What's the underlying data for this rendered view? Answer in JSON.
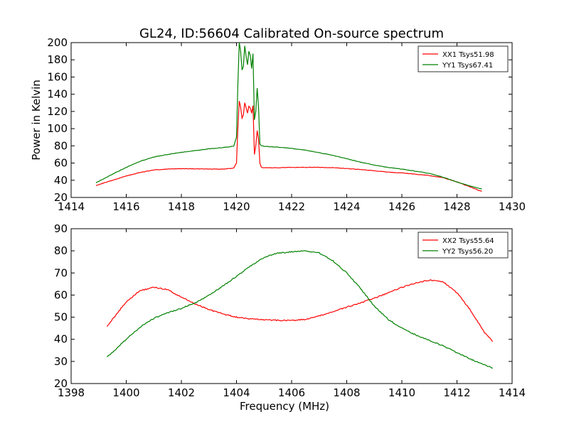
{
  "title": "GL24, ID:56604 Calibrated On-source spectrum",
  "colors": {
    "xx": "#ff0000",
    "yy": "#008000",
    "axes": "#000000",
    "background": "#ffffff"
  },
  "chart_data": [
    {
      "type": "line",
      "title": "GL24, ID:56604 Calibrated On-source spectrum",
      "xlabel": "",
      "ylabel": "Power in Kelvin",
      "xlim": [
        1414,
        1430
      ],
      "ylim": [
        20,
        200
      ],
      "xticks": [
        "1414",
        "1416",
        "1418",
        "1420",
        "1422",
        "1424",
        "1426",
        "1428",
        "1430"
      ],
      "yticks": [
        "20",
        "40",
        "60",
        "80",
        "100",
        "120",
        "140",
        "160",
        "180",
        "200"
      ],
      "grid": false,
      "legend_position": "top-right",
      "series": [
        {
          "name": "XX1 Tsys51.98",
          "color": "#ff0000",
          "x": [
            1414.9,
            1415.2,
            1415.5,
            1416.0,
            1416.5,
            1417.0,
            1417.5,
            1418.0,
            1418.5,
            1419.0,
            1419.5,
            1419.9,
            1420.0,
            1420.05,
            1420.1,
            1420.15,
            1420.2,
            1420.25,
            1420.3,
            1420.35,
            1420.4,
            1420.45,
            1420.5,
            1420.55,
            1420.6,
            1420.65,
            1420.7,
            1420.75,
            1420.8,
            1420.85,
            1420.9,
            1421.0,
            1421.5,
            1422.0,
            1422.5,
            1423.0,
            1423.5,
            1424.0,
            1424.5,
            1425.0,
            1425.5,
            1426.0,
            1426.5,
            1427.0,
            1427.5,
            1428.0,
            1428.5,
            1428.9
          ],
          "values": [
            34,
            37,
            40,
            45,
            49,
            52,
            53,
            53.5,
            53.3,
            53,
            53,
            54,
            60,
            100,
            132,
            125,
            112,
            116,
            130,
            124,
            118,
            126,
            124,
            118,
            127,
            70,
            80,
            98,
            88,
            60,
            55,
            54.5,
            54.5,
            55,
            55,
            55,
            54.5,
            53.5,
            52.5,
            51,
            49.5,
            48.5,
            47,
            45.5,
            43,
            38,
            32,
            27
          ]
        },
        {
          "name": "YY1 Tsys67.41",
          "color": "#008000",
          "x": [
            1414.9,
            1415.2,
            1415.5,
            1416.0,
            1416.5,
            1417.0,
            1417.5,
            1418.0,
            1418.5,
            1419.0,
            1419.5,
            1419.9,
            1420.0,
            1420.05,
            1420.1,
            1420.15,
            1420.2,
            1420.25,
            1420.3,
            1420.35,
            1420.4,
            1420.45,
            1420.5,
            1420.55,
            1420.6,
            1420.65,
            1420.7,
            1420.75,
            1420.8,
            1420.85,
            1420.9,
            1421.0,
            1421.5,
            1422.0,
            1422.5,
            1423.0,
            1423.5,
            1424.0,
            1424.5,
            1425.0,
            1425.5,
            1426.0,
            1426.5,
            1427.0,
            1427.5,
            1428.0,
            1428.5,
            1428.9
          ],
          "values": [
            37,
            42,
            47,
            55,
            62,
            67,
            70,
            72.5,
            74.5,
            76.5,
            78,
            79.5,
            90,
            150,
            200,
            190,
            168,
            172,
            196,
            184,
            174,
            190,
            185,
            170,
            187,
            110,
            120,
            147,
            125,
            82,
            80,
            79.5,
            78.5,
            77,
            75,
            72,
            69,
            65,
            61,
            57.5,
            55,
            53,
            50.5,
            48,
            43.5,
            38,
            33,
            30
          ]
        }
      ]
    },
    {
      "type": "line",
      "title": "",
      "xlabel": "Frequency (MHz)",
      "ylabel": "",
      "xlim": [
        1398,
        1414
      ],
      "ylim": [
        20,
        90
      ],
      "xticks": [
        "1398",
        "1400",
        "1402",
        "1404",
        "1406",
        "1408",
        "1410",
        "1412",
        "1414"
      ],
      "yticks": [
        "20",
        "30",
        "40",
        "50",
        "60",
        "70",
        "80",
        "90"
      ],
      "grid": false,
      "legend_position": "top-right",
      "series": [
        {
          "name": "XX2 Tsys55.64",
          "color": "#ff0000",
          "x": [
            1399.3,
            1399.5,
            1400.0,
            1400.5,
            1401.0,
            1401.5,
            1402.0,
            1402.5,
            1403.0,
            1403.5,
            1404.0,
            1404.5,
            1405.0,
            1405.5,
            1406.0,
            1406.5,
            1407.0,
            1407.5,
            1408.0,
            1408.5,
            1409.0,
            1409.5,
            1410.0,
            1410.5,
            1411.0,
            1411.5,
            1412.0,
            1412.5,
            1413.0,
            1413.3
          ],
          "values": [
            46,
            49,
            57,
            62,
            63.5,
            62.5,
            59,
            56,
            53.5,
            51.5,
            50,
            49.2,
            48.8,
            48.6,
            48.5,
            49,
            50.5,
            52.5,
            54.5,
            56.5,
            58.5,
            61,
            63.5,
            65.5,
            66.8,
            66,
            61,
            53,
            43,
            39
          ]
        },
        {
          "name": "YY2 Tsys56.20",
          "color": "#008000",
          "x": [
            1399.3,
            1399.5,
            1400.0,
            1400.5,
            1401.0,
            1401.5,
            1402.0,
            1402.5,
            1403.0,
            1403.5,
            1404.0,
            1404.5,
            1405.0,
            1405.5,
            1406.0,
            1406.5,
            1407.0,
            1407.5,
            1408.0,
            1408.5,
            1409.0,
            1409.5,
            1410.0,
            1410.5,
            1411.0,
            1411.5,
            1412.0,
            1412.5,
            1413.0,
            1413.3
          ],
          "values": [
            32,
            34,
            40,
            45.5,
            49.5,
            52,
            54,
            56.5,
            60,
            64,
            68.5,
            73,
            77,
            79,
            79.5,
            80,
            79,
            75.5,
            70,
            63,
            55,
            49,
            45,
            42,
            39.5,
            37,
            34,
            31,
            28.5,
            27
          ]
        }
      ]
    }
  ]
}
